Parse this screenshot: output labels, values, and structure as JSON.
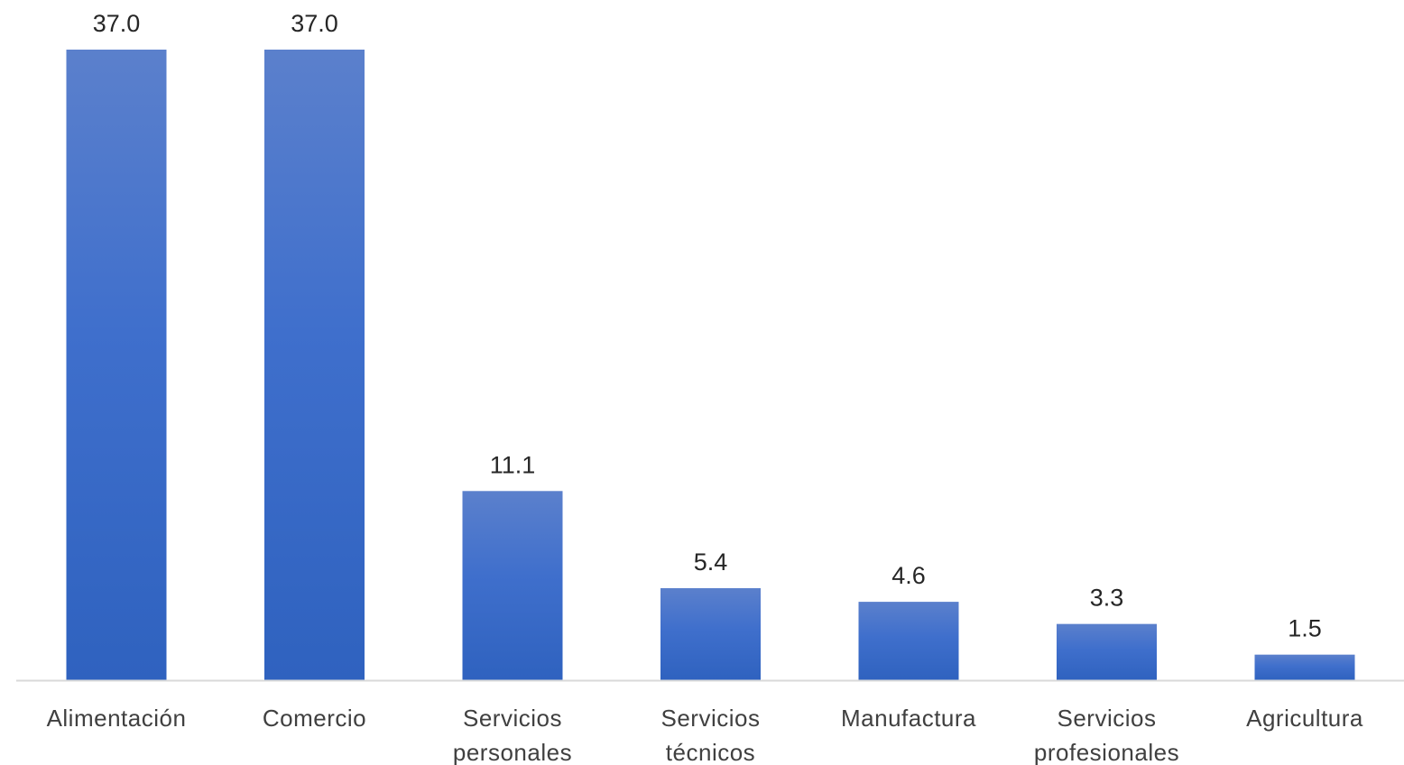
{
  "chart_data": {
    "type": "bar",
    "categories": [
      [
        "Alimentación"
      ],
      [
        "Comercio"
      ],
      [
        "Servicios",
        "personales"
      ],
      [
        "Servicios",
        "técnicos"
      ],
      [
        "Manufactura"
      ],
      [
        "Servicios",
        "profesionales"
      ],
      [
        "Agricultura"
      ]
    ],
    "values": [
      37.0,
      37.0,
      11.1,
      5.4,
      4.6,
      3.3,
      1.5
    ],
    "value_labels": [
      "37.0",
      "37.0",
      "11.1",
      "5.4",
      "4.6",
      "3.3",
      "1.5"
    ],
    "title": "",
    "xlabel": "",
    "ylabel": "",
    "ylim": [
      0,
      37.0
    ],
    "grid": false,
    "legend": "none",
    "colors": {
      "bar_top": "#5b80cc",
      "bar_bottom": "#2f62bf",
      "axis": "#d9d9d9"
    }
  }
}
